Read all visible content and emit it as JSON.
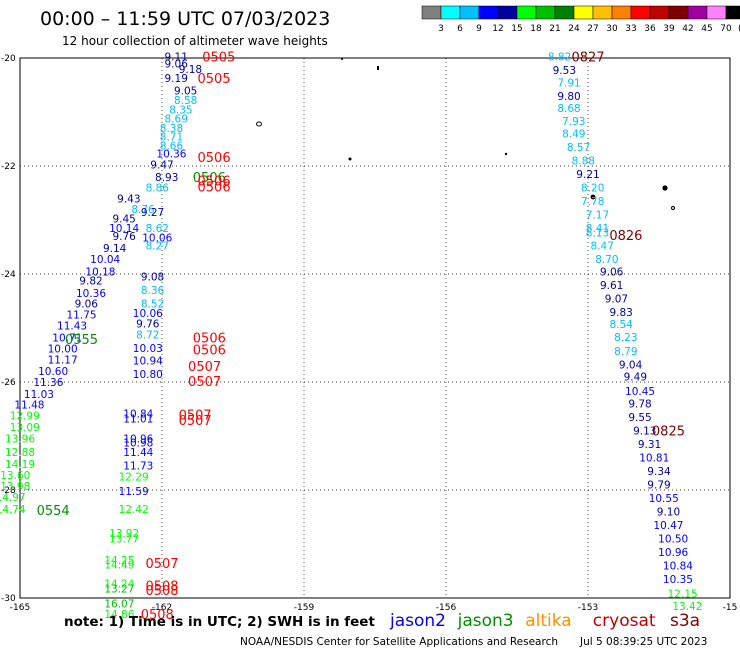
{
  "header": {
    "title": "00:00 – 11:59 UTC 07/03/2023",
    "subtitle": "12 hour collection of altimeter wave heights"
  },
  "colorbar": {
    "unit": "(ft)",
    "ticks": [
      "3",
      "6",
      "9",
      "12",
      "15",
      "18",
      "21",
      "24",
      "27",
      "30",
      "33",
      "36",
      "39",
      "42",
      "45",
      "70"
    ],
    "colors": [
      "#808080",
      "#00ffff",
      "#00c0ff",
      "#0000ff",
      "#0000a0",
      "#00ff00",
      "#00c000",
      "#008000",
      "#ffff00",
      "#ffc000",
      "#ff8000",
      "#ff0000",
      "#c00000",
      "#800000",
      "#a000a0",
      "#ff80ff",
      "#000000"
    ]
  },
  "axes": {
    "x_ticks": [
      "-165",
      "-162",
      "-159",
      "-156",
      "-153",
      "-15"
    ],
    "y_ticks": [
      "-20",
      "-22",
      "-24",
      "-26",
      "-28",
      "-30"
    ]
  },
  "footer": {
    "note": "note: 1) Time is in UTC; 2) SWH is in feet",
    "credit": "NOAA/NESDIS Center for Satellite Applications and Research",
    "timestamp": "Jul 5 08:39:25 UTC 2023"
  },
  "legend": [
    {
      "name": "jason2",
      "color": "#0000ee"
    },
    {
      "name": "jason3",
      "color": "#009000"
    },
    {
      "name": "altika",
      "color": "#ff9000"
    },
    {
      "name": "cryosat",
      "color": "#c00000"
    },
    {
      "name": "s3a",
      "color": "#800000"
    }
  ],
  "chart_data": {
    "type": "scatter",
    "xlim": [
      -165,
      -150
    ],
    "ylim": [
      -30,
      -20
    ],
    "grid": true,
    "points": [
      {
        "x": -161.7,
        "y": -19.97,
        "v": "9.11",
        "c": "#0000a0"
      },
      {
        "x": -161.7,
        "y": -20.1,
        "v": "9.06",
        "c": "#0000a0"
      },
      {
        "x": -161.4,
        "y": -20.2,
        "v": "9.18",
        "c": "#0000a0"
      },
      {
        "x": -161.7,
        "y": -20.37,
        "v": "9.19",
        "c": "#0000a0"
      },
      {
        "x": -161.5,
        "y": -20.6,
        "v": "9.05",
        "c": "#0000a0"
      },
      {
        "x": -161.5,
        "y": -20.78,
        "v": "8.58",
        "c": "#00c0ff"
      },
      {
        "x": -161.6,
        "y": -20.95,
        "v": "8.35",
        "c": "#00c0ff"
      },
      {
        "x": -161.7,
        "y": -21.12,
        "v": "8.69",
        "c": "#00c0ff"
      },
      {
        "x": -161.8,
        "y": -21.3,
        "v": "8.38",
        "c": "#00c0ff"
      },
      {
        "x": -161.8,
        "y": -21.45,
        "v": "8.71",
        "c": "#00c0ff"
      },
      {
        "x": -161.8,
        "y": -21.62,
        "v": "8.66",
        "c": "#00c0ff"
      },
      {
        "x": -161.8,
        "y": -21.77,
        "v": "10.36",
        "c": "#0000ff"
      },
      {
        "x": -162.0,
        "y": -21.97,
        "v": "9.47",
        "c": "#0000a0"
      },
      {
        "x": -161.9,
        "y": -22.2,
        "v": "8.93",
        "c": "#0000a0"
      },
      {
        "x": -162.1,
        "y": -22.4,
        "v": "8.86",
        "c": "#00c0ff"
      },
      {
        "x": -162.7,
        "y": -22.6,
        "v": "9.43",
        "c": "#0000a0"
      },
      {
        "x": -162.4,
        "y": -22.8,
        "v": "8.76",
        "c": "#00c0ff"
      },
      {
        "x": -162.8,
        "y": -22.97,
        "v": "9.45",
        "c": "#0000a0"
      },
      {
        "x": -162.2,
        "y": -22.85,
        "v": "9.27",
        "c": "#0000a0"
      },
      {
        "x": -162.8,
        "y": -23.15,
        "v": "10.14",
        "c": "#0000ff"
      },
      {
        "x": -162.1,
        "y": -23.15,
        "v": "8.62",
        "c": "#00c0ff"
      },
      {
        "x": -162.8,
        "y": -23.3,
        "v": "9.76",
        "c": "#0000a0"
      },
      {
        "x": -162.1,
        "y": -23.32,
        "v": "10.06",
        "c": "#0000ff"
      },
      {
        "x": -162.1,
        "y": -23.47,
        "v": "8.27",
        "c": "#00c0ff"
      },
      {
        "x": -163.0,
        "y": -23.52,
        "v": "9.14",
        "c": "#0000a0"
      },
      {
        "x": -163.2,
        "y": -23.72,
        "v": "10.04",
        "c": "#0000ff"
      },
      {
        "x": -163.3,
        "y": -23.95,
        "v": "10.18",
        "c": "#0000ff"
      },
      {
        "x": -162.2,
        "y": -24.05,
        "v": "9.08",
        "c": "#0000a0"
      },
      {
        "x": -163.5,
        "y": -24.12,
        "v": "9.82",
        "c": "#0000a0"
      },
      {
        "x": -162.2,
        "y": -24.3,
        "v": "8.36",
        "c": "#00c0ff"
      },
      {
        "x": -163.5,
        "y": -24.35,
        "v": "10.36",
        "c": "#0000ff"
      },
      {
        "x": -162.2,
        "y": -24.55,
        "v": "8.52",
        "c": "#00c0ff"
      },
      {
        "x": -163.6,
        "y": -24.55,
        "v": "9.06",
        "c": "#0000a0"
      },
      {
        "x": -162.3,
        "y": -24.72,
        "v": "10.06",
        "c": "#0000ff"
      },
      {
        "x": -163.7,
        "y": -24.75,
        "v": "11.75",
        "c": "#0000ff"
      },
      {
        "x": -162.3,
        "y": -24.92,
        "v": "9.76",
        "c": "#0000a0"
      },
      {
        "x": -163.9,
        "y": -24.95,
        "v": "11.43",
        "c": "#0000ff"
      },
      {
        "x": -162.3,
        "y": -25.12,
        "v": "8.72",
        "c": "#00c0ff"
      },
      {
        "x": -164.0,
        "y": -25.18,
        "v": "10.71",
        "c": "#0000ff"
      },
      {
        "x": -162.3,
        "y": -25.37,
        "v": "10.03",
        "c": "#0000ff"
      },
      {
        "x": -164.1,
        "y": -25.38,
        "v": "10.00",
        "c": "#0000ff"
      },
      {
        "x": -164.1,
        "y": -25.58,
        "v": "11.17",
        "c": "#0000ff"
      },
      {
        "x": -162.3,
        "y": -25.6,
        "v": "10.94",
        "c": "#0000ff"
      },
      {
        "x": -164.3,
        "y": -25.8,
        "v": "10.60",
        "c": "#0000ff"
      },
      {
        "x": -162.3,
        "y": -25.85,
        "v": "10.80",
        "c": "#0000ff"
      },
      {
        "x": -164.4,
        "y": -26.0,
        "v": "11.36",
        "c": "#0000ff"
      },
      {
        "x": -164.6,
        "y": -26.22,
        "v": "11.03",
        "c": "#0000ff"
      },
      {
        "x": -164.8,
        "y": -26.42,
        "v": "11.48",
        "c": "#0000ff"
      },
      {
        "x": -164.9,
        "y": -26.62,
        "v": "12.99",
        "c": "#00ff00"
      },
      {
        "x": -162.5,
        "y": -26.58,
        "v": "10.84",
        "c": "#0000ff"
      },
      {
        "x": -162.5,
        "y": -26.68,
        "v": "11.01",
        "c": "#0000ff"
      },
      {
        "x": -164.9,
        "y": -26.83,
        "v": "13.09",
        "c": "#00ff00"
      },
      {
        "x": -162.5,
        "y": -27.05,
        "v": "10.96",
        "c": "#0000ff"
      },
      {
        "x": -162.5,
        "y": -27.12,
        "v": "10.98",
        "c": "#0000ff"
      },
      {
        "x": -165.0,
        "y": -27.05,
        "v": "13.96",
        "c": "#00ff00"
      },
      {
        "x": -162.5,
        "y": -27.3,
        "v": "11.44",
        "c": "#0000ff"
      },
      {
        "x": -165.0,
        "y": -27.3,
        "v": "12.88",
        "c": "#00ff00"
      },
      {
        "x": -162.5,
        "y": -27.55,
        "v": "11.73",
        "c": "#0000ff"
      },
      {
        "x": -165.0,
        "y": -27.52,
        "v": "14.19",
        "c": "#00ff00"
      },
      {
        "x": -162.6,
        "y": -27.75,
        "v": "12.29",
        "c": "#00ff00"
      },
      {
        "x": -165.1,
        "y": -27.72,
        "v": "13.60",
        "c": "#00ff00"
      },
      {
        "x": -165.1,
        "y": -27.93,
        "v": "13.98",
        "c": "#00ff00"
      },
      {
        "x": -162.6,
        "y": -28.02,
        "v": "11.59",
        "c": "#0000ff"
      },
      {
        "x": -165.2,
        "y": -28.13,
        "v": "14.97",
        "c": "#00ff00"
      },
      {
        "x": -165.2,
        "y": -28.35,
        "v": "14.74",
        "c": "#00ff00"
      },
      {
        "x": -162.6,
        "y": -28.35,
        "v": "12.42",
        "c": "#00ff00"
      },
      {
        "x": -162.8,
        "y": -28.8,
        "v": "13.92",
        "c": "#00ff00"
      },
      {
        "x": -162.8,
        "y": -28.9,
        "v": "13.77",
        "c": "#00ff00"
      },
      {
        "x": -162.9,
        "y": -29.3,
        "v": "14.25",
        "c": "#00ff00"
      },
      {
        "x": -162.9,
        "y": -29.38,
        "v": "14.49",
        "c": "#00ff00"
      },
      {
        "x": -162.9,
        "y": -29.73,
        "v": "14.24",
        "c": "#00ff00"
      },
      {
        "x": -162.9,
        "y": -29.82,
        "v": "13.27",
        "c": "#00c000"
      },
      {
        "x": -162.9,
        "y": -30.1,
        "v": "16.07",
        "c": "#00c000"
      },
      {
        "x": -162.9,
        "y": -30.3,
        "v": "14.86",
        "c": "#00ff00"
      },
      {
        "x": -153.6,
        "y": -19.97,
        "v": "8.82",
        "c": "#00c0ff"
      },
      {
        "x": -153.5,
        "y": -20.22,
        "v": "9.53",
        "c": "#0000a0"
      },
      {
        "x": -153.4,
        "y": -20.45,
        "v": "7.91",
        "c": "#00c0ff"
      },
      {
        "x": -153.4,
        "y": -20.7,
        "v": "9.80",
        "c": "#0000a0"
      },
      {
        "x": -153.4,
        "y": -20.93,
        "v": "8.68",
        "c": "#00c0ff"
      },
      {
        "x": -153.3,
        "y": -21.17,
        "v": "7.93",
        "c": "#00c0ff"
      },
      {
        "x": -153.3,
        "y": -21.4,
        "v": "8.49",
        "c": "#00c0ff"
      },
      {
        "x": -153.2,
        "y": -21.65,
        "v": "8.57",
        "c": "#00c0ff"
      },
      {
        "x": -153.1,
        "y": -21.9,
        "v": "8.88",
        "c": "#00c0ff"
      },
      {
        "x": -153.0,
        "y": -22.15,
        "v": "9.21",
        "c": "#0000a0"
      },
      {
        "x": -152.9,
        "y": -22.4,
        "v": "8.20",
        "c": "#00c0ff"
      },
      {
        "x": -152.9,
        "y": -22.65,
        "v": "7.78",
        "c": "#00c0ff"
      },
      {
        "x": -152.8,
        "y": -22.9,
        "v": "7.17",
        "c": "#00c0ff"
      },
      {
        "x": -152.8,
        "y": -23.15,
        "v": "8.41",
        "c": "#00c0ff"
      },
      {
        "x": -152.8,
        "y": -23.23,
        "v": "8.13",
        "c": "#00c0ff"
      },
      {
        "x": -152.7,
        "y": -23.47,
        "v": "8.47",
        "c": "#00c0ff"
      },
      {
        "x": -152.6,
        "y": -23.72,
        "v": "8.70",
        "c": "#00c0ff"
      },
      {
        "x": -152.5,
        "y": -23.95,
        "v": "9.06",
        "c": "#0000a0"
      },
      {
        "x": -152.5,
        "y": -24.2,
        "v": "9.61",
        "c": "#0000a0"
      },
      {
        "x": -152.4,
        "y": -24.45,
        "v": "9.07",
        "c": "#0000a0"
      },
      {
        "x": -152.3,
        "y": -24.7,
        "v": "9.83",
        "c": "#0000a0"
      },
      {
        "x": -152.3,
        "y": -24.93,
        "v": "8.54",
        "c": "#00c0ff"
      },
      {
        "x": -152.2,
        "y": -25.17,
        "v": "8.23",
        "c": "#00c0ff"
      },
      {
        "x": -152.2,
        "y": -25.43,
        "v": "8.79",
        "c": "#00c0ff"
      },
      {
        "x": -152.1,
        "y": -25.68,
        "v": "9.04",
        "c": "#0000a0"
      },
      {
        "x": -152.0,
        "y": -25.9,
        "v": "9.49",
        "c": "#0000a0"
      },
      {
        "x": -151.9,
        "y": -26.17,
        "v": "10.45",
        "c": "#0000ff"
      },
      {
        "x": -151.9,
        "y": -26.4,
        "v": "9.78",
        "c": "#0000a0"
      },
      {
        "x": -151.9,
        "y": -26.65,
        "v": "9.55",
        "c": "#0000a0"
      },
      {
        "x": -151.8,
        "y": -26.9,
        "v": "9.13",
        "c": "#0000a0"
      },
      {
        "x": -151.7,
        "y": -27.15,
        "v": "9.31",
        "c": "#0000a0"
      },
      {
        "x": -151.6,
        "y": -27.4,
        "v": "10.81",
        "c": "#0000ff"
      },
      {
        "x": -151.5,
        "y": -27.65,
        "v": "9.34",
        "c": "#0000a0"
      },
      {
        "x": -151.5,
        "y": -27.9,
        "v": "9.79",
        "c": "#0000a0"
      },
      {
        "x": -151.4,
        "y": -28.15,
        "v": "10.55",
        "c": "#0000ff"
      },
      {
        "x": -151.3,
        "y": -28.4,
        "v": "9.10",
        "c": "#0000a0"
      },
      {
        "x": -151.3,
        "y": -28.65,
        "v": "10.47",
        "c": "#0000ff"
      },
      {
        "x": -151.2,
        "y": -28.9,
        "v": "10.50",
        "c": "#0000ff"
      },
      {
        "x": -151.2,
        "y": -29.15,
        "v": "10.96",
        "c": "#0000ff"
      },
      {
        "x": -151.1,
        "y": -29.4,
        "v": "10.84",
        "c": "#0000ff"
      },
      {
        "x": -151.1,
        "y": -29.65,
        "v": "10.35",
        "c": "#0000ff"
      },
      {
        "x": -151.0,
        "y": -29.92,
        "v": "12.15",
        "c": "#00ff00"
      },
      {
        "x": -150.9,
        "y": -30.15,
        "v": "13.42",
        "c": "#00ff00"
      }
    ],
    "time_labels": [
      {
        "x": -160.8,
        "y": -19.97,
        "t": "0505",
        "c": "#ff0000"
      },
      {
        "x": -160.9,
        "y": -20.37,
        "t": "0505",
        "c": "#ff0000"
      },
      {
        "x": -160.9,
        "y": -21.83,
        "t": "0506",
        "c": "#ff0000"
      },
      {
        "x": -161.0,
        "y": -22.2,
        "t": "0506",
        "c": "#009000"
      },
      {
        "x": -160.9,
        "y": -22.27,
        "t": "0506",
        "c": "#ff0000"
      },
      {
        "x": -160.9,
        "y": -22.38,
        "t": "0506",
        "c": "#ff0000"
      },
      {
        "x": -161.0,
        "y": -25.18,
        "t": "0506",
        "c": "#ff0000"
      },
      {
        "x": -161.0,
        "y": -25.4,
        "t": "0506",
        "c": "#ff0000"
      },
      {
        "x": -163.7,
        "y": -25.2,
        "t": "0555",
        "c": "#009000"
      },
      {
        "x": -161.1,
        "y": -25.7,
        "t": "0507",
        "c": "#ff0000"
      },
      {
        "x": -161.1,
        "y": -25.98,
        "t": "0507",
        "c": "#ff0000"
      },
      {
        "x": -161.3,
        "y": -26.6,
        "t": "0507",
        "c": "#ff0000"
      },
      {
        "x": -161.3,
        "y": -26.7,
        "t": "0507",
        "c": "#ff0000"
      },
      {
        "x": -164.3,
        "y": -28.37,
        "t": "0554",
        "c": "#009000"
      },
      {
        "x": -162.0,
        "y": -29.35,
        "t": "0507",
        "c": "#ff0000"
      },
      {
        "x": -162.0,
        "y": -29.77,
        "t": "0508",
        "c": "#ff0000"
      },
      {
        "x": -162.0,
        "y": -29.85,
        "t": "0508",
        "c": "#ff0000"
      },
      {
        "x": -162.1,
        "y": -30.3,
        "t": "0508",
        "c": "#ff0000"
      },
      {
        "x": -153.0,
        "y": -19.97,
        "t": "0827",
        "c": "#800000"
      },
      {
        "x": -152.2,
        "y": -23.28,
        "t": "0826",
        "c": "#800000"
      },
      {
        "x": -151.3,
        "y": -26.9,
        "t": "0825",
        "c": "#800000"
      }
    ]
  }
}
